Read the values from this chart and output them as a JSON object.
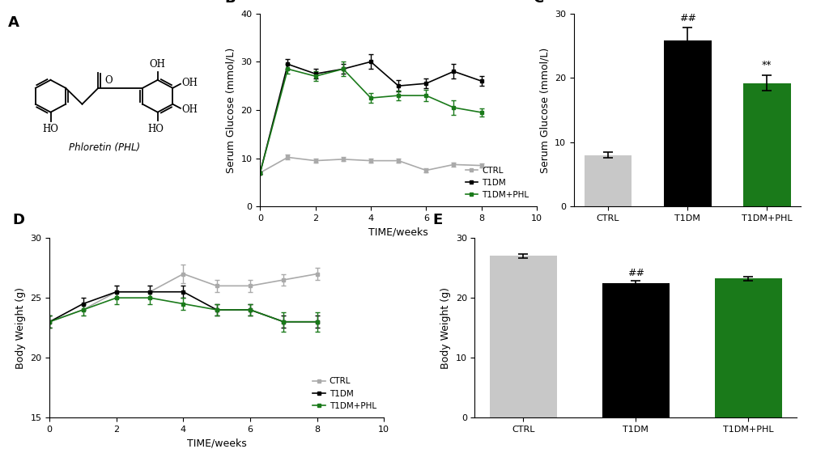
{
  "panel_B": {
    "weeks": [
      0,
      1,
      2,
      3,
      4,
      5,
      6,
      7,
      8
    ],
    "CTRL_mean": [
      7.0,
      10.2,
      9.5,
      9.8,
      9.5,
      9.5,
      7.5,
      8.7,
      8.5
    ],
    "CTRL_err": [
      0.3,
      0.5,
      0.4,
      0.4,
      0.4,
      0.4,
      0.4,
      0.4,
      0.4
    ],
    "T1DM_mean": [
      7.0,
      29.5,
      27.5,
      28.5,
      30.0,
      25.0,
      25.5,
      28.0,
      26.0
    ],
    "T1DM_err": [
      0.3,
      1.0,
      1.0,
      1.0,
      1.5,
      1.2,
      1.0,
      1.5,
      1.0
    ],
    "T1DMPHL_mean": [
      7.0,
      28.5,
      27.0,
      28.5,
      22.5,
      23.0,
      23.0,
      20.5,
      19.5
    ],
    "T1DMPHL_err": [
      0.3,
      1.0,
      1.0,
      1.5,
      1.0,
      1.0,
      1.2,
      1.5,
      0.8
    ],
    "ylim": [
      0,
      40
    ],
    "yticks": [
      0,
      10,
      20,
      30,
      40
    ],
    "xlim": [
      0,
      10
    ],
    "xticks": [
      0,
      2,
      4,
      6,
      8,
      10
    ],
    "xlabel": "TIME/weeks",
    "ylabel": "Serum Glucose (mmol/L)"
  },
  "panel_C": {
    "categories": [
      "CTRL",
      "T1DM",
      "T1DM+PHL"
    ],
    "means": [
      8.0,
      25.8,
      19.2
    ],
    "errors": [
      0.4,
      2.0,
      1.2
    ],
    "colors": [
      "#c8c8c8",
      "#000000",
      "#1a7a1a"
    ],
    "ylim": [
      0,
      30
    ],
    "yticks": [
      0,
      10,
      20,
      30
    ],
    "ylabel": "Serum Glucose (mmol/L)",
    "annotations": [
      "",
      "##",
      "**"
    ]
  },
  "panel_D": {
    "weeks": [
      0,
      1,
      2,
      3,
      4,
      5,
      6,
      7,
      8
    ],
    "CTRL_mean": [
      23.0,
      24.0,
      25.5,
      25.5,
      27.0,
      26.0,
      26.0,
      26.5,
      27.0
    ],
    "CTRL_err": [
      0.5,
      0.5,
      0.5,
      0.5,
      0.8,
      0.5,
      0.5,
      0.5,
      0.5
    ],
    "T1DM_mean": [
      23.0,
      24.5,
      25.5,
      25.5,
      25.5,
      24.0,
      24.0,
      23.0,
      23.0
    ],
    "T1DM_err": [
      0.5,
      0.5,
      0.5,
      0.5,
      0.5,
      0.5,
      0.5,
      0.5,
      0.5
    ],
    "T1DMPHL_mean": [
      23.0,
      24.0,
      25.0,
      25.0,
      24.5,
      24.0,
      24.0,
      23.0,
      23.0
    ],
    "T1DMPHL_err": [
      0.5,
      0.5,
      0.5,
      0.5,
      0.5,
      0.5,
      0.5,
      0.8,
      0.8
    ],
    "ylim": [
      15,
      30
    ],
    "yticks": [
      15,
      20,
      25,
      30
    ],
    "xlim": [
      0,
      10
    ],
    "xticks": [
      0,
      2,
      4,
      6,
      8,
      10
    ],
    "xlabel": "TIME/weeks",
    "ylabel": "Body Weight (g)"
  },
  "panel_E": {
    "categories": [
      "CTRL",
      "T1DM",
      "T1DM+PHL"
    ],
    "means": [
      27.0,
      22.5,
      23.2
    ],
    "errors": [
      0.35,
      0.4,
      0.4
    ],
    "colors": [
      "#c8c8c8",
      "#000000",
      "#1a7a1a"
    ],
    "ylim": [
      0,
      30
    ],
    "yticks": [
      0,
      10,
      20,
      30
    ],
    "ylabel": "Body Weight (g)",
    "annotations": [
      "",
      "##",
      ""
    ]
  },
  "colors": {
    "CTRL": "#aaaaaa",
    "T1DM": "#000000",
    "T1DMPHL": "#1a7a1a"
  },
  "background": "#ffffff"
}
